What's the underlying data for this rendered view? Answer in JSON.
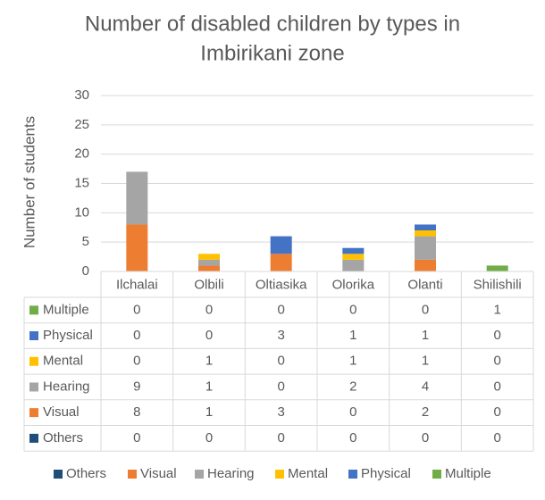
{
  "chart_data": {
    "type": "bar",
    "stacked": true,
    "title": "Number of disabled children by types in Imbirikani zone",
    "title_lines": [
      "Number of disabled children by types in",
      "Imbirikani zone"
    ],
    "xlabel": "",
    "ylabel": "Number of students",
    "ylim": [
      0,
      30
    ],
    "yticks": [
      0,
      5,
      10,
      15,
      20,
      25,
      30
    ],
    "grid": true,
    "legend_position": "bottom",
    "data_table": true,
    "categories": [
      "Ilchalai",
      "Olbili",
      "Oltiasika",
      "Olorika",
      "Olanti",
      "Shilishili"
    ],
    "series": [
      {
        "name": "Others",
        "color": "#1f4e79",
        "values": [
          0,
          0,
          0,
          0,
          0,
          0
        ]
      },
      {
        "name": "Visual",
        "color": "#ed7d31",
        "values": [
          8,
          1,
          3,
          0,
          2,
          0
        ]
      },
      {
        "name": "Hearing",
        "color": "#a5a5a5",
        "values": [
          9,
          1,
          0,
          2,
          4,
          0
        ]
      },
      {
        "name": "Mental",
        "color": "#ffc000",
        "values": [
          0,
          1,
          0,
          1,
          1,
          0
        ]
      },
      {
        "name": "Physical",
        "color": "#4472c4",
        "values": [
          0,
          0,
          3,
          1,
          1,
          0
        ]
      },
      {
        "name": "Multiple",
        "color": "#70ad47",
        "values": [
          0,
          0,
          0,
          0,
          0,
          1
        ]
      }
    ],
    "table_row_order": [
      "Multiple",
      "Physical",
      "Mental",
      "Hearing",
      "Visual",
      "Others"
    ]
  }
}
